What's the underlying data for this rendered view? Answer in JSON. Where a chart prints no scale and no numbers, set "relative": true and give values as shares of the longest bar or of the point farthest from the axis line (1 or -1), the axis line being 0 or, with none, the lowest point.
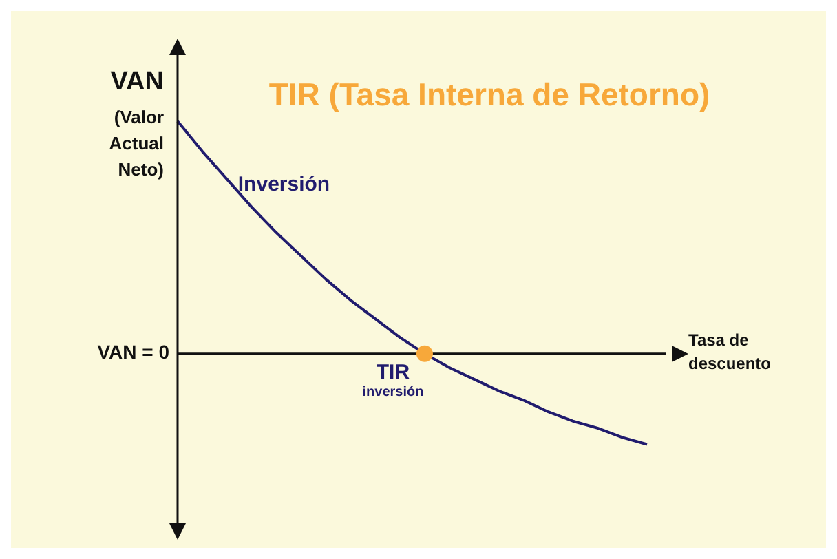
{
  "chart_data": {
    "type": "line",
    "relative": true,
    "title": "TIR (Tasa Interna de Retorno)",
    "ylabel": "VAN (Valor Actual Neto)",
    "xlabel": "Tasa de descuento",
    "categories": [
      null,
      null,
      null,
      null,
      null,
      null,
      null,
      null,
      null,
      null,
      null,
      null,
      null,
      null,
      null,
      null,
      null,
      null,
      null,
      null
    ],
    "series": [
      {
        "name": "Inversión",
        "color": "#211c6e",
        "marker": "none",
        "values": [
          1,
          0.87,
          0.75,
          0.63,
          0.52,
          0.42,
          0.32,
          0.23,
          0.15,
          0.07,
          0,
          -0.06,
          -0.11,
          -0.16,
          -0.2,
          -0.25,
          -0.29,
          -0.32,
          -0.36,
          -0.39
        ]
      }
    ],
    "annotations": [
      "VAN = 0",
      "TIR",
      "inversión"
    ]
  }
}
